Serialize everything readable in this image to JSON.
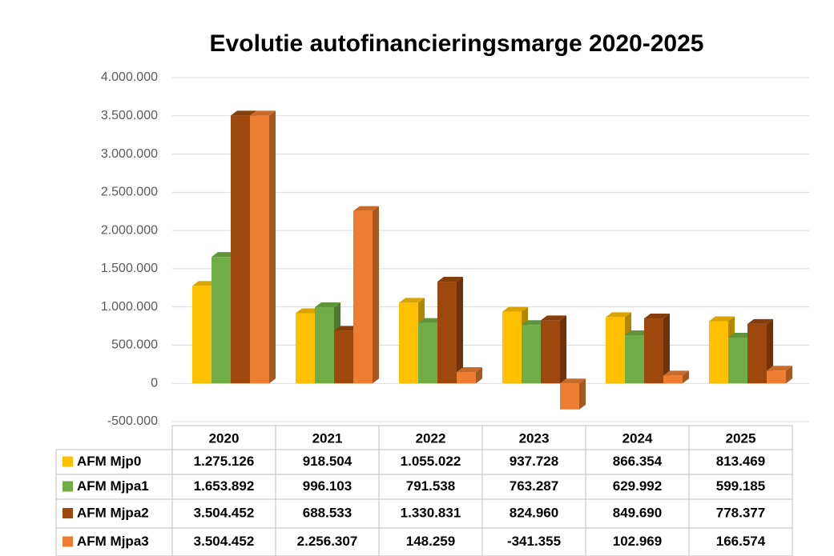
{
  "chart_data": {
    "type": "bar",
    "title": "Evolutie autofinancieringsmarge 2020-2025",
    "categories": [
      "2020",
      "2021",
      "2022",
      "2023",
      "2024",
      "2025"
    ],
    "series": [
      {
        "name": "AFM Mjp0",
        "color": "#ffc000",
        "values": [
          1275126,
          918504,
          1055022,
          937728,
          866354,
          813469
        ],
        "value_labels": [
          "1.275.126",
          "918.504",
          "1.055.022",
          "937.728",
          "866.354",
          "813.469"
        ]
      },
      {
        "name": "AFM Mjpa1",
        "color": "#70ad47",
        "values": [
          1653892,
          996103,
          791538,
          763287,
          629992,
          599185
        ],
        "value_labels": [
          "1.653.892",
          "996.103",
          "791.538",
          "763.287",
          "629.992",
          "599.185"
        ]
      },
      {
        "name": "AFM Mjpa2",
        "color": "#9e480e",
        "values": [
          3504452,
          688533,
          1330831,
          824960,
          849690,
          778377
        ],
        "value_labels": [
          "3.504.452",
          "688.533",
          "1.330.831",
          "824.960",
          "849.690",
          "778.377"
        ]
      },
      {
        "name": "AFM Mjpa3",
        "color": "#ed7d31",
        "values": [
          3504452,
          2256307,
          148259,
          -341355,
          102969,
          166574
        ],
        "value_labels": [
          "3.504.452",
          "2.256.307",
          "148.259",
          "-341.355",
          "102.969",
          "166.574"
        ]
      }
    ],
    "ylim": [
      -500000,
      4000000
    ],
    "yticks": [
      {
        "value": -500000,
        "label": "-500.000"
      },
      0,
      {
        "value": 500000,
        "label": "500.000"
      },
      {
        "value": 1000000,
        "label": "1.000.000"
      },
      {
        "value": 1500000,
        "label": "1.500.000"
      },
      {
        "value": 2000000,
        "label": "2.000.000"
      },
      {
        "value": 2500000,
        "label": "2.500.000"
      },
      {
        "value": 3000000,
        "label": "3.000.000"
      },
      {
        "value": 3500000,
        "label": "3.500.000"
      },
      {
        "value": 4000000,
        "label": "4.000.000"
      }
    ],
    "grid": true
  }
}
